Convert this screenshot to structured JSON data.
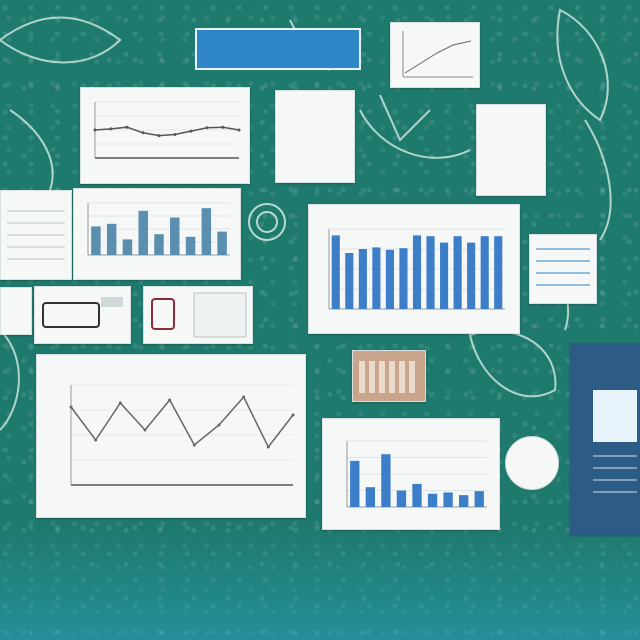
{
  "banner": {
    "text": ""
  },
  "note_card": {
    "text": ""
  },
  "side_note": {
    "text": ""
  },
  "badge": {
    "text": ""
  },
  "big_word": {
    "text": ""
  },
  "colors": {
    "background": "#1f7a6e",
    "card": "#f6f8f8",
    "bar_blue": "#3d7ec8",
    "banner_blue": "#2f86c7",
    "accent_teal": "#25a3b8"
  },
  "chart_data": [
    {
      "type": "bar",
      "title": "",
      "values": [
        92,
        70,
        75,
        77,
        74,
        76,
        92,
        91,
        83,
        91,
        83,
        91,
        91
      ],
      "ylim": [
        0,
        100
      ],
      "grid": true
    },
    {
      "type": "line",
      "title": "",
      "values": [
        78,
        45,
        82,
        55,
        85,
        40,
        60,
        88,
        38,
        70
      ],
      "ylim": [
        0,
        100
      ],
      "grid": true
    },
    {
      "type": "line",
      "title": "",
      "values": [
        50,
        52,
        55,
        45,
        40,
        42,
        48,
        54,
        55,
        50
      ],
      "ylim": [
        0,
        100
      ],
      "grid": true
    },
    {
      "type": "bar",
      "title": "",
      "values": [
        55,
        60,
        30,
        85,
        40,
        72,
        35,
        90,
        45
      ],
      "ylim": [
        0,
        100
      ],
      "grid": true
    },
    {
      "type": "bar",
      "title": "",
      "values": [
        70,
        30,
        80,
        25,
        35,
        20,
        22,
        18,
        24
      ],
      "ylim": [
        0,
        100
      ],
      "grid": true
    }
  ]
}
